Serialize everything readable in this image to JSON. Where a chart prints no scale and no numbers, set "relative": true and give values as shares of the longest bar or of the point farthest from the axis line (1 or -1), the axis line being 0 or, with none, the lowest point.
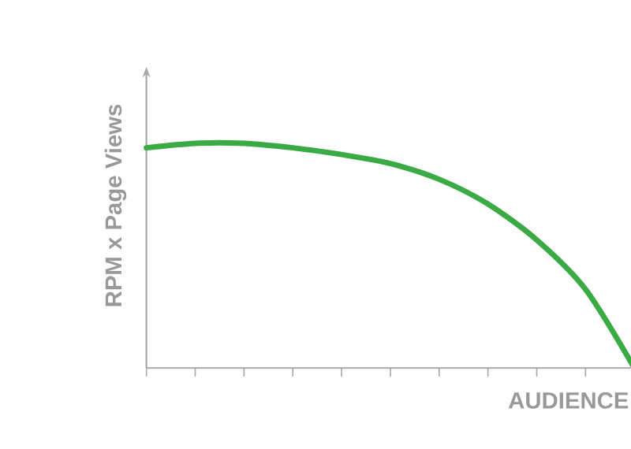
{
  "chart_data": {
    "type": "line",
    "relative": true,
    "xlabel": "AUDIENCE",
    "ylabel": "RPM x Page Views",
    "categories": [
      null,
      null,
      null,
      null,
      null,
      null,
      null,
      null,
      null,
      null,
      null,
      null
    ],
    "series": [
      {
        "color": "#3aaa45",
        "values": [
          0.98,
          1,
          1,
          0.98,
          0.95,
          0.91,
          0.84,
          0.73,
          0.57,
          0.35,
          0,
          null
        ]
      }
    ],
    "marker": "none",
    "line_style": "solid"
  }
}
